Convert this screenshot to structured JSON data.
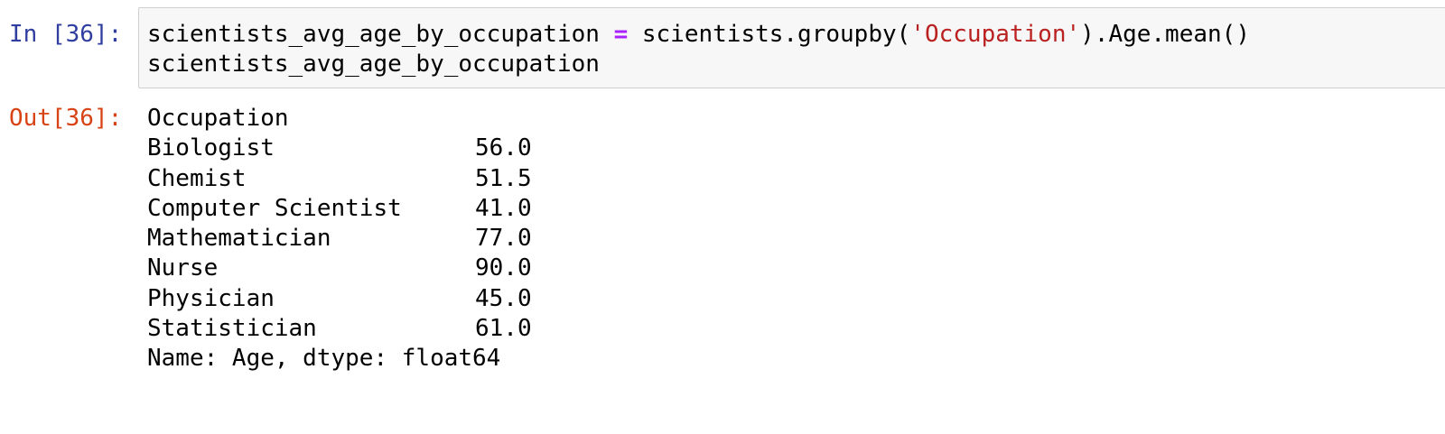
{
  "cell": {
    "in_prompt": "In [36]:",
    "out_prompt": "Out[36]:",
    "code": {
      "line1_var": "scientists_avg_age_by_occupation",
      "line1_op": "=",
      "line1_call_start": "scientists.groupby(",
      "line1_string": "'Occupation'",
      "line1_call_end": ").Age.mean()",
      "line2": "scientists_avg_age_by_occupation"
    },
    "output": {
      "header": "Occupation",
      "rows": [
        {
          "occupation": "Biologist",
          "age": "56.0"
        },
        {
          "occupation": "Chemist",
          "age": "51.5"
        },
        {
          "occupation": "Computer Scientist",
          "age": "41.0"
        },
        {
          "occupation": "Mathematician",
          "age": "77.0"
        },
        {
          "occupation": "Nurse",
          "age": "90.0"
        },
        {
          "occupation": "Physician",
          "age": "45.0"
        },
        {
          "occupation": "Statistician",
          "age": "61.0"
        }
      ],
      "footer": "Name: Age, dtype: float64"
    },
    "colors": {
      "in_prompt": "#303F9F",
      "out_prompt": "#D84315",
      "operator": "#AA22FF",
      "string": "#BA2121",
      "input_bg": "#f7f7f7",
      "input_border": "#cfcfcf"
    }
  }
}
